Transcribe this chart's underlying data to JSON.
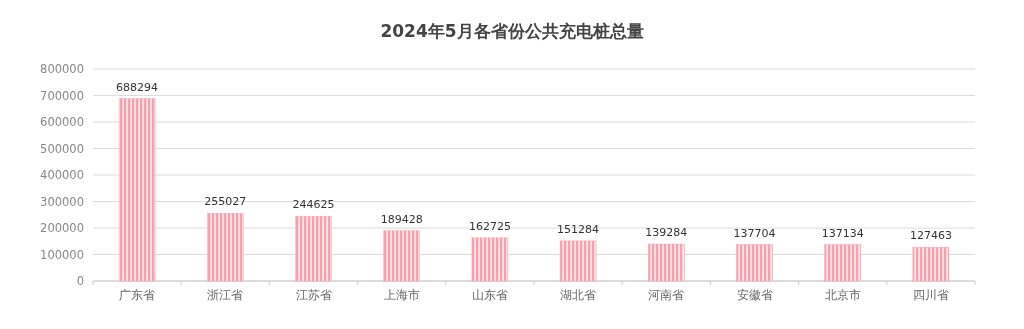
{
  "chart_data": {
    "type": "bar",
    "title": "2024年5月各省份公共充电桩总量",
    "categories": [
      "广东省",
      "浙江省",
      "江苏省",
      "上海市",
      "山东省",
      "湖北省",
      "河南省",
      "安徽省",
      "北京市",
      "四川省"
    ],
    "values": [
      688294,
      255027,
      244625,
      189428,
      162725,
      151284,
      139284,
      137704,
      137134,
      127463
    ],
    "color": "#f7a1ad",
    "ylim": [
      0,
      800000
    ],
    "yticks": [
      0,
      100000,
      200000,
      300000,
      400000,
      500000,
      600000,
      700000,
      800000
    ],
    "grid": "y",
    "data_labels": true
  }
}
